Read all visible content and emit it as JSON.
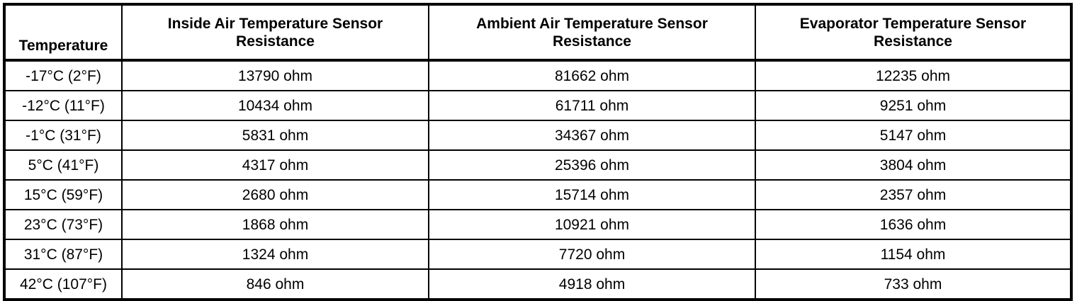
{
  "table": {
    "headers": [
      "Temperature",
      "Inside Air Temperature Sensor Resistance",
      "Ambient Air Temperature Sensor Resistance",
      "Evaporator Temperature Sensor Resistance"
    ],
    "rows": [
      [
        "-17°C (2°F)",
        "13790 ohm",
        "81662 ohm",
        "12235 ohm"
      ],
      [
        "-12°C (11°F)",
        "10434 ohm",
        "61711 ohm",
        "9251 ohm"
      ],
      [
        "-1°C (31°F)",
        "5831 ohm",
        "34367 ohm",
        "5147 ohm"
      ],
      [
        "5°C (41°F)",
        "4317 ohm",
        "25396 ohm",
        "3804 ohm"
      ],
      [
        "15°C (59°F)",
        "2680 ohm",
        "15714 ohm",
        "2357 ohm"
      ],
      [
        "23°C (73°F)",
        "1868 ohm",
        "10921 ohm",
        "1636 ohm"
      ],
      [
        "31°C (87°F)",
        "1324 ohm",
        "7720 ohm",
        "1154 ohm"
      ],
      [
        "42°C (107°F)",
        "846 ohm",
        "4918 ohm",
        "733 ohm"
      ]
    ]
  }
}
